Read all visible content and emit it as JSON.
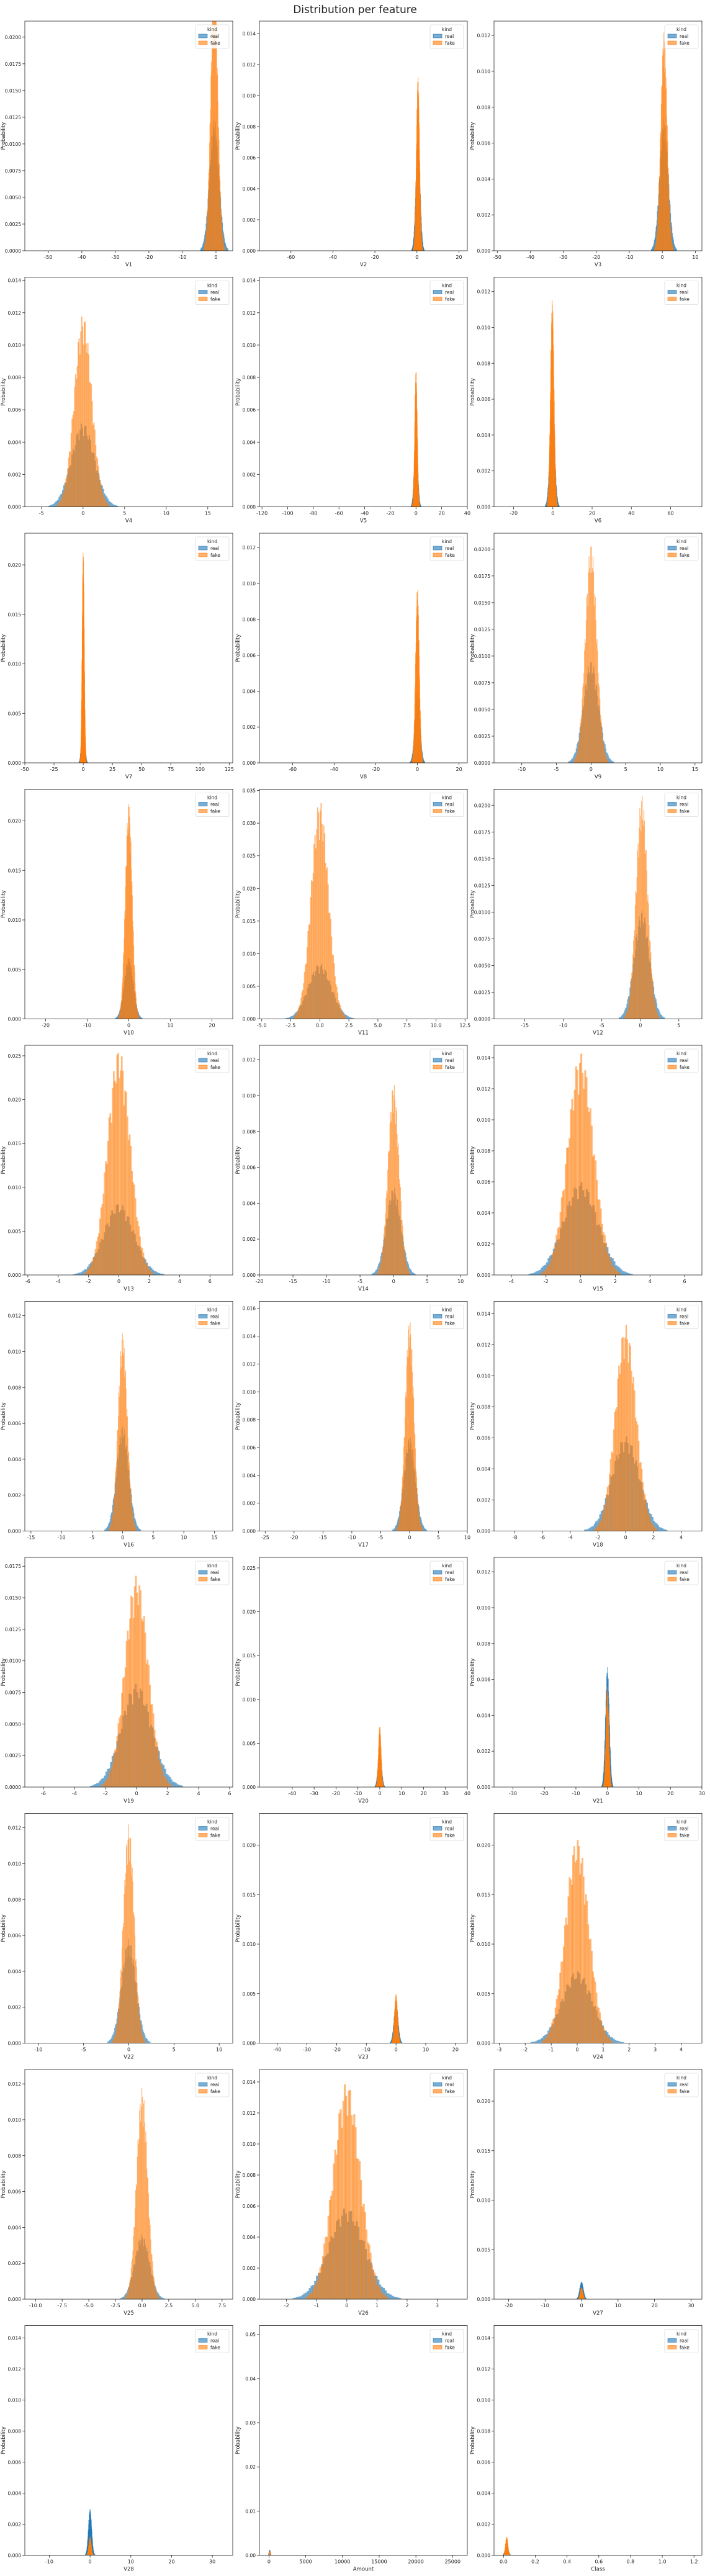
{
  "figure_title": "Distribution per feature",
  "legend": {
    "title": "kind",
    "entries": [
      {
        "label": "real",
        "color": "#1f77b4"
      },
      {
        "label": "fake",
        "color": "#ff7f0e"
      }
    ]
  },
  "ylabel": "Probability",
  "chart_data": [
    {
      "type": "histogram",
      "xlabel": "V1",
      "xticks": [
        -50,
        -40,
        -30,
        -20,
        -10,
        0
      ],
      "yticks": [
        0.0,
        0.0025,
        0.005,
        0.0075,
        0.01,
        0.0125,
        0.015,
        0.0175,
        0.02
      ],
      "xlim": [
        -57,
        5
      ],
      "ylim": [
        0,
        0.0215
      ],
      "real_peak": 0.0125,
      "fake_peak": 0.026,
      "center": -0.5,
      "spread": 1.4
    },
    {
      "type": "histogram",
      "xlabel": "V2",
      "xticks": [
        -60,
        -40,
        -20,
        0,
        20
      ],
      "yticks": [
        0.0,
        0.002,
        0.004,
        0.006,
        0.008,
        0.01,
        0.012,
        0.014
      ],
      "xlim": [
        -75,
        24
      ],
      "ylim": [
        0,
        0.0148
      ],
      "real_peak": 0.0072,
      "fake_peak": 0.0113,
      "center": 0.5,
      "spread": 1.0
    },
    {
      "type": "histogram",
      "xlabel": "V3",
      "xticks": [
        -50,
        -40,
        -30,
        -20,
        -10,
        0,
        10
      ],
      "yticks": [
        0.0,
        0.002,
        0.004,
        0.006,
        0.008,
        0.01,
        0.012
      ],
      "xlim": [
        -51,
        12
      ],
      "ylim": [
        0,
        0.0128
      ],
      "real_peak": 0.0074,
      "fake_peak": 0.0122,
      "center": 0.5,
      "spread": 1.3
    },
    {
      "type": "histogram",
      "xlabel": "V4",
      "xticks": [
        -5,
        0,
        5,
        10,
        15
      ],
      "yticks": [
        0.0,
        0.002,
        0.004,
        0.006,
        0.008,
        0.01,
        0.012,
        0.014
      ],
      "xlim": [
        -7,
        18
      ],
      "ylim": [
        0,
        0.0142
      ],
      "real_peak": 0.0052,
      "fake_peak": 0.0119,
      "center": 0,
      "spread": 1.4
    },
    {
      "type": "histogram",
      "xlabel": "V5",
      "xticks": [
        -120,
        -100,
        -80,
        -60,
        -40,
        -20,
        0,
        20,
        40
      ],
      "yticks": [
        0.0,
        0.002,
        0.004,
        0.006,
        0.008,
        0.01,
        0.012,
        0.014
      ],
      "xlim": [
        -122,
        40
      ],
      "ylim": [
        0,
        0.0142
      ],
      "real_peak": 0.0045,
      "fake_peak": 0.0085,
      "center": 0,
      "spread": 1.3
    },
    {
      "type": "histogram",
      "xlabel": "V6",
      "xticks": [
        -20,
        0,
        20,
        40,
        60
      ],
      "yticks": [
        0.0,
        0.002,
        0.004,
        0.006,
        0.008,
        0.01,
        0.012
      ],
      "xlim": [
        -30,
        76
      ],
      "ylim": [
        0,
        0.0128
      ],
      "real_peak": 0.0057,
      "fake_peak": 0.0116,
      "center": -0.3,
      "spread": 1.2
    },
    {
      "type": "histogram",
      "xlabel": "V7",
      "xticks": [
        -50,
        -25,
        0,
        25,
        50,
        75,
        100,
        125
      ],
      "yticks": [
        0.0,
        0.005,
        0.01,
        0.015,
        0.02
      ],
      "xlim": [
        -50,
        128
      ],
      "ylim": [
        0,
        0.0232
      ],
      "real_peak": 0.0063,
      "fake_peak": 0.0215,
      "center": 0,
      "spread": 1.2
    },
    {
      "type": "histogram",
      "xlabel": "V8",
      "xticks": [
        -60,
        -40,
        -20,
        0,
        20
      ],
      "yticks": [
        0.0,
        0.002,
        0.004,
        0.006,
        0.008,
        0.01,
        0.012
      ],
      "xlim": [
        -76,
        24
      ],
      "ylim": [
        0,
        0.0128
      ],
      "real_peak": 0.004,
      "fake_peak": 0.0098,
      "center": 0,
      "spread": 1.2
    },
    {
      "type": "histogram",
      "xlabel": "V9",
      "xticks": [
        -10,
        -5,
        0,
        5,
        10,
        15
      ],
      "yticks": [
        0.0,
        0.0025,
        0.005,
        0.0075,
        0.01,
        0.0125,
        0.015,
        0.0175,
        0.02
      ],
      "xlim": [
        -14,
        16
      ],
      "ylim": [
        0,
        0.0215
      ],
      "real_peak": 0.0096,
      "fake_peak": 0.0206,
      "center": 0,
      "spread": 1.1
    },
    {
      "type": "histogram",
      "xlabel": "V10",
      "xticks": [
        -20,
        -10,
        0,
        10,
        20
      ],
      "yticks": [
        0.0,
        0.005,
        0.01,
        0.015,
        0.02
      ],
      "xlim": [
        -25,
        25
      ],
      "ylim": [
        0,
        0.0232
      ],
      "real_peak": 0.0063,
      "fake_peak": 0.0221,
      "center": 0,
      "spread": 1.1
    },
    {
      "type": "histogram",
      "xlabel": "V11",
      "xticks": [
        -5.0,
        -2.5,
        0.0,
        2.5,
        5.0,
        7.5,
        10.0,
        12.5
      ],
      "yticks": [
        0.0,
        0.005,
        0.01,
        0.015,
        0.02,
        0.025,
        0.03,
        0.035
      ],
      "xlim": [
        -5.2,
        12.7
      ],
      "ylim": [
        0,
        0.0352
      ],
      "real_peak": 0.0085,
      "fake_peak": 0.0335,
      "center": 0,
      "spread": 1.0
    },
    {
      "type": "histogram",
      "xlabel": "V12",
      "xticks": [
        -15,
        -10,
        -5,
        0,
        5
      ],
      "yticks": [
        0.0,
        0.0025,
        0.005,
        0.0075,
        0.01,
        0.0125,
        0.015,
        0.0175,
        0.02
      ],
      "xlim": [
        -19,
        8
      ],
      "ylim": [
        0,
        0.0215
      ],
      "real_peak": 0.0102,
      "fake_peak": 0.021,
      "center": 0.2,
      "spread": 1.0
    },
    {
      "type": "histogram",
      "xlabel": "V13",
      "xticks": [
        -6,
        -4,
        -2,
        0,
        2,
        4,
        6
      ],
      "yticks": [
        0.0,
        0.005,
        0.01,
        0.015,
        0.02,
        0.025
      ],
      "xlim": [
        -6.2,
        7.5
      ],
      "ylim": [
        0,
        0.0262
      ],
      "real_peak": 0.0082,
      "fake_peak": 0.0258,
      "center": 0,
      "spread": 1.0
    },
    {
      "type": "histogram",
      "xlabel": "V14",
      "xticks": [
        -20,
        -15,
        -10,
        -5,
        0,
        5,
        10
      ],
      "yticks": [
        0.0,
        0.002,
        0.004,
        0.006,
        0.008,
        0.01,
        0.012
      ],
      "xlim": [
        -20,
        11
      ],
      "ylim": [
        0,
        0.0128
      ],
      "real_peak": 0.0049,
      "fake_peak": 0.0107,
      "center": 0,
      "spread": 1.1
    },
    {
      "type": "histogram",
      "xlabel": "V15",
      "xticks": [
        -4,
        -2,
        0,
        2,
        4,
        6
      ],
      "yticks": [
        0.0,
        0.002,
        0.004,
        0.006,
        0.008,
        0.01,
        0.012,
        0.014
      ],
      "xlim": [
        -5,
        7
      ],
      "ylim": [
        0,
        0.0148
      ],
      "real_peak": 0.006,
      "fake_peak": 0.0143,
      "center": 0,
      "spread": 1.0
    },
    {
      "type": "histogram",
      "xlabel": "V16",
      "xticks": [
        -15,
        -10,
        -5,
        0,
        5,
        10,
        15
      ],
      "yticks": [
        0.0,
        0.002,
        0.004,
        0.006,
        0.008,
        0.01,
        0.012
      ],
      "xlim": [
        -16,
        18
      ],
      "ylim": [
        0,
        0.0128
      ],
      "real_peak": 0.0059,
      "fake_peak": 0.0111,
      "center": 0,
      "spread": 1.0
    },
    {
      "type": "histogram",
      "xlabel": "V17",
      "xticks": [
        -25,
        -20,
        -15,
        -10,
        -5,
        0,
        5,
        10
      ],
      "yticks": [
        0.0,
        0.002,
        0.004,
        0.006,
        0.008,
        0.01,
        0.012,
        0.014,
        0.016
      ],
      "xlim": [
        -26,
        10
      ],
      "ylim": [
        0,
        0.0165
      ],
      "real_peak": 0.0068,
      "fake_peak": 0.0152,
      "center": 0,
      "spread": 1.0
    },
    {
      "type": "histogram",
      "xlabel": "V18",
      "xticks": [
        -8,
        -6,
        -4,
        -2,
        0,
        2,
        4
      ],
      "yticks": [
        0.0,
        0.002,
        0.004,
        0.006,
        0.008,
        0.01,
        0.012,
        0.014
      ],
      "xlim": [
        -9.5,
        5.5
      ],
      "ylim": [
        0,
        0.0148
      ],
      "real_peak": 0.0061,
      "fake_peak": 0.0133,
      "center": 0,
      "spread": 1.0
    },
    {
      "type": "histogram",
      "xlabel": "V19",
      "xticks": [
        -6,
        -4,
        -2,
        0,
        2,
        4,
        6
      ],
      "yticks": [
        0.0,
        0.0025,
        0.005,
        0.0075,
        0.01,
        0.0125,
        0.015,
        0.0175
      ],
      "xlim": [
        -7.2,
        6.2
      ],
      "ylim": [
        0,
        0.0182
      ],
      "real_peak": 0.0082,
      "fake_peak": 0.0168,
      "center": 0,
      "spread": 1.0
    },
    {
      "type": "histogram",
      "xlabel": "V20",
      "xticks": [
        -40,
        -30,
        -20,
        -10,
        0,
        10,
        20,
        30,
        40
      ],
      "yticks": [
        0.0,
        0.005,
        0.01,
        0.015,
        0.02,
        0.025
      ],
      "xlim": [
        -55,
        40
      ],
      "ylim": [
        0,
        0.0262
      ],
      "real_peak": 0.0043,
      "fake_peak": 0.007,
      "center": 0,
      "spread": 0.8
    },
    {
      "type": "histogram",
      "xlabel": "V21",
      "xticks": [
        -30,
        -20,
        -10,
        0,
        10,
        20,
        30
      ],
      "yticks": [
        0.0,
        0.002,
        0.004,
        0.006,
        0.008,
        0.01,
        0.012
      ],
      "xlim": [
        -36,
        30
      ],
      "ylim": [
        0,
        0.0128
      ],
      "real_peak": 0.0067,
      "fake_peak": 0.0056,
      "center": 0,
      "spread": 0.6
    },
    {
      "type": "histogram",
      "xlabel": "V22",
      "xticks": [
        -10,
        -5,
        0,
        5,
        10
      ],
      "yticks": [
        0.0,
        0.002,
        0.004,
        0.006,
        0.008,
        0.01,
        0.012
      ],
      "xlim": [
        -11.5,
        11.5
      ],
      "ylim": [
        0,
        0.0128
      ],
      "real_peak": 0.0058,
      "fake_peak": 0.0122,
      "center": 0,
      "spread": 0.8
    },
    {
      "type": "histogram",
      "xlabel": "V23",
      "xticks": [
        -40,
        -30,
        -20,
        -10,
        0,
        10,
        20
      ],
      "yticks": [
        0.0,
        0.005,
        0.01,
        0.015,
        0.02
      ],
      "xlim": [
        -46,
        24
      ],
      "ylim": [
        0,
        0.0232
      ],
      "real_peak": 0.004,
      "fake_peak": 0.005,
      "center": 0,
      "spread": 0.7
    },
    {
      "type": "histogram",
      "xlabel": "V24",
      "xticks": [
        -3,
        -2,
        -1,
        0,
        1,
        2,
        3,
        4
      ],
      "yticks": [
        0.0,
        0.005,
        0.01,
        0.015,
        0.02
      ],
      "xlim": [
        -3.2,
        4.8
      ],
      "ylim": [
        0,
        0.0232
      ],
      "real_peak": 0.0073,
      "fake_peak": 0.0207,
      "center": 0,
      "spread": 0.6
    },
    {
      "type": "histogram",
      "xlabel": "V25",
      "xticks": [
        -10.0,
        -7.5,
        -5.0,
        -2.5,
        0.0,
        2.5,
        5.0,
        7.5
      ],
      "yticks": [
        0.0,
        0.002,
        0.004,
        0.006,
        0.008,
        0.01,
        0.012
      ],
      "xlim": [
        -11,
        8.5
      ],
      "ylim": [
        0,
        0.0128
      ],
      "real_peak": 0.0036,
      "fake_peak": 0.0118,
      "center": 0,
      "spread": 0.7
    },
    {
      "type": "histogram",
      "xlabel": "V26",
      "xticks": [
        -2,
        -1,
        0,
        1,
        2,
        3
      ],
      "yticks": [
        0.0,
        0.002,
        0.004,
        0.006,
        0.008,
        0.01,
        0.012,
        0.014
      ],
      "xlim": [
        -2.9,
        4.0
      ],
      "ylim": [
        0,
        0.0148
      ],
      "real_peak": 0.0059,
      "fake_peak": 0.014,
      "center": 0,
      "spread": 0.6
    },
    {
      "type": "histogram",
      "xlabel": "V27",
      "xticks": [
        -20,
        -10,
        0,
        10,
        20,
        30
      ],
      "yticks": [
        0.0,
        0.005,
        0.01,
        0.015,
        0.02
      ],
      "xlim": [
        -24,
        33
      ],
      "ylim": [
        0,
        0.0232
      ],
      "real_peak": 0.0018,
      "fake_peak": 0.0012,
      "center": 0,
      "spread": 0.5
    },
    {
      "type": "histogram",
      "xlabel": "V28",
      "xticks": [
        -10,
        0,
        10,
        20,
        30
      ],
      "yticks": [
        0.0,
        0.002,
        0.004,
        0.006,
        0.008,
        0.01,
        0.012,
        0.014
      ],
      "xlim": [
        -16,
        35
      ],
      "ylim": [
        0,
        0.0148
      ],
      "real_peak": 0.003,
      "fake_peak": 0.0012,
      "center": 0,
      "spread": 0.4
    },
    {
      "type": "histogram",
      "xlabel": "Amount",
      "xticks": [
        0,
        5000,
        10000,
        15000,
        20000,
        25000
      ],
      "yticks": [
        0.0,
        0.01,
        0.02,
        0.03,
        0.04,
        0.05
      ],
      "xlim": [
        -1300,
        27000
      ],
      "ylim": [
        0,
        0.052
      ],
      "real_peak": 0.0012,
      "fake_peak": 0.0009,
      "center": 100,
      "spread": 80
    },
    {
      "type": "histogram",
      "xlabel": "Class",
      "xticks": [
        0.0,
        0.2,
        0.4,
        0.6,
        0.8,
        1.0,
        1.2
      ],
      "yticks": [
        0.0,
        0.002,
        0.004,
        0.006,
        0.008,
        0.01,
        0.012,
        0.014
      ],
      "xlim": [
        -0.06,
        1.25
      ],
      "ylim": [
        0,
        0.0148
      ],
      "real_peak": 0.0006,
      "fake_peak": 0.0012,
      "center": 0.02,
      "spread": 0.01
    }
  ]
}
